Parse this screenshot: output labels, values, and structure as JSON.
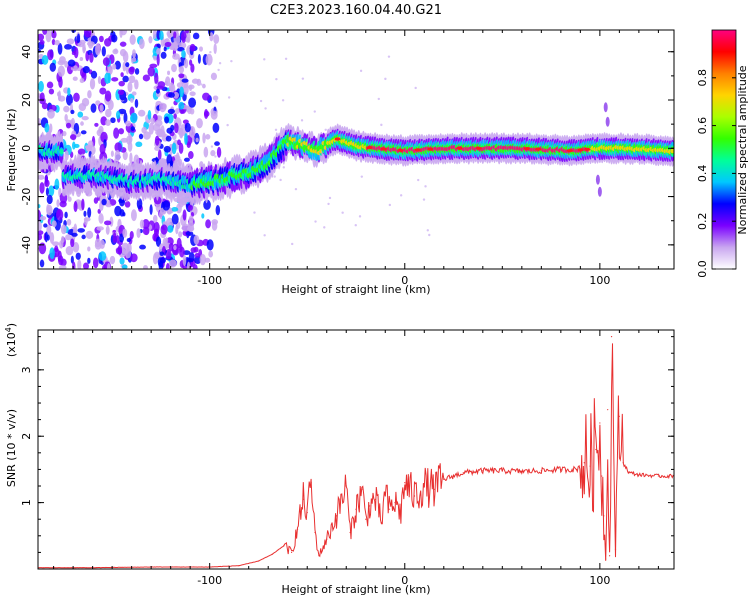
{
  "title": "C2E3.2023.160.04.40.G21",
  "chart_data": [
    {
      "type": "heatmap",
      "xlabel": "Height of straight line (km)",
      "ylabel": "Frequency (Hz)",
      "xlim": [
        -188,
        138
      ],
      "ylim": [
        -50,
        49
      ],
      "xticks": [
        -100,
        0,
        100
      ],
      "xtick_labels": [
        "-100",
        "0",
        "100"
      ],
      "yticks": [
        -40,
        -20,
        0,
        20,
        40
      ],
      "ytick_labels": [
        "-40",
        "-20",
        "0",
        "20",
        "40"
      ],
      "colorbar": {
        "label": "Normalized spectral amplitude",
        "range": [
          0,
          1
        ],
        "ticks": [
          0.0,
          0.2,
          0.4,
          0.6,
          0.8
        ],
        "tick_labels": [
          "0.0",
          "0.2",
          "0.4",
          "0.6",
          "0.8"
        ],
        "colors": [
          "#ffffff",
          "#c9a6f0",
          "#7a00ff",
          "#0000ff",
          "#00c8ff",
          "#00ff99",
          "#33ff00",
          "#aaff00",
          "#ffd400",
          "#ff8000",
          "#ff0000",
          "#ff0080"
        ]
      },
      "ridge": [
        {
          "x": -175,
          "y": -12
        },
        {
          "x": -160,
          "y": -11
        },
        {
          "x": -140,
          "y": -14
        },
        {
          "x": -125,
          "y": -13
        },
        {
          "x": -110,
          "y": -15
        },
        {
          "x": -95,
          "y": -13
        },
        {
          "x": -80,
          "y": -10
        },
        {
          "x": -70,
          "y": -6
        },
        {
          "x": -60,
          "y": 3
        },
        {
          "x": -55,
          "y": 2
        },
        {
          "x": -45,
          "y": -1
        },
        {
          "x": -35,
          "y": 4
        },
        {
          "x": -25,
          "y": 1
        },
        {
          "x": -15,
          "y": 0
        },
        {
          "x": 0,
          "y": -1
        },
        {
          "x": 20,
          "y": 0
        },
        {
          "x": 60,
          "y": 0
        },
        {
          "x": 85,
          "y": -1
        },
        {
          "x": 100,
          "y": 0
        },
        {
          "x": 110,
          "y": 0
        },
        {
          "x": 138,
          "y": -1
        }
      ],
      "grid": false
    },
    {
      "type": "line",
      "xlabel": "Height of straight line (km)",
      "ylabel": "SNR (10 * v/v)",
      "y_multiplier_label": "(x10",
      "y_multiplier_exp": "4",
      "xlim": [
        -188,
        138
      ],
      "ylim": [
        0,
        3.6
      ],
      "xticks": [
        -100,
        0,
        100
      ],
      "xtick_labels": [
        "-100",
        "0",
        "100"
      ],
      "yticks": [
        1,
        2,
        3
      ],
      "ytick_labels": [
        "1",
        "2",
        "3"
      ],
      "color": "#e83030",
      "series": [
        {
          "x": [
            -188,
            -160,
            -130,
            -100,
            -85,
            -75,
            -68,
            -62,
            -58,
            -55,
            -52,
            -50,
            -48,
            -46,
            -44,
            -40,
            -35,
            -30,
            -28,
            -25,
            -22,
            -20,
            -18,
            -15,
            -12,
            -10,
            -8,
            -5,
            -2,
            0,
            5,
            10,
            15,
            20,
            25,
            30,
            40,
            50,
            60,
            70,
            80,
            88,
            92,
            95,
            98,
            100,
            101,
            102,
            103,
            104,
            105,
            106,
            108,
            110,
            112,
            115,
            120,
            130,
            138
          ],
          "y": [
            0.02,
            0.02,
            0.03,
            0.03,
            0.05,
            0.12,
            0.22,
            0.35,
            0.25,
            0.6,
            1.05,
            0.85,
            1.3,
            0.55,
            0.2,
            0.45,
            0.8,
            1.25,
            0.55,
            0.9,
            1.2,
            0.75,
            0.95,
            1.05,
            0.7,
            1.15,
            0.9,
            1.0,
            0.85,
            1.3,
            1.1,
            1.25,
            1.2,
            1.35,
            1.4,
            1.45,
            1.48,
            1.48,
            1.47,
            1.48,
            1.5,
            1.5,
            1.6,
            1.55,
            1.8,
            2.2,
            1.4,
            0.8,
            0.15,
            2.4,
            0.2,
            3.5,
            0.3,
            2.3,
            1.6,
            1.45,
            1.42,
            1.4,
            1.4
          ]
        }
      ],
      "grid": false
    }
  ]
}
